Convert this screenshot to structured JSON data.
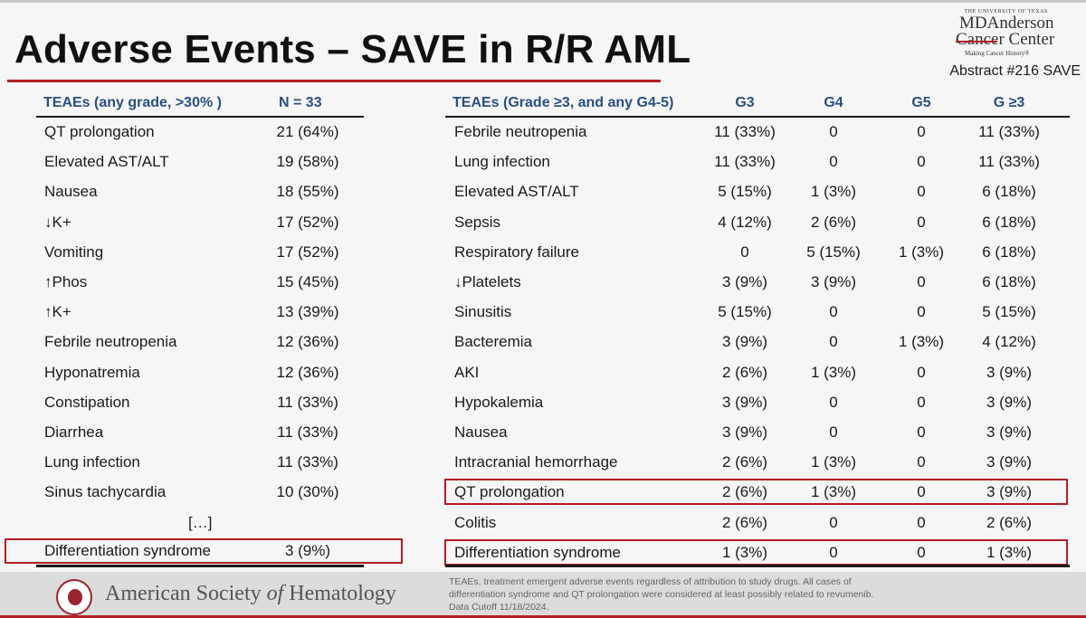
{
  "header": {
    "title": "Adverse Events – SAVE in R/R AML",
    "abstract": "Abstract #216 SAVE",
    "logo": {
      "university": "THE UNIVERSITY OF TEXAS",
      "line1": "MDAnderson",
      "line2": "Cancer Center",
      "tagline": "Making Cancer History®"
    }
  },
  "left_table": {
    "col_headers": [
      "TEAEs (any grade, >30% )",
      "N = 33"
    ],
    "rows": [
      [
        "QT prolongation",
        "21 (64%)"
      ],
      [
        "Elevated AST/ALT",
        "19 (58%)"
      ],
      [
        "Nausea",
        "18 (55%)"
      ],
      [
        "↓K+",
        "17 (52%)"
      ],
      [
        "Vomiting",
        "17 (52%)"
      ],
      [
        "↑Phos",
        "15 (45%)"
      ],
      [
        "↑K+",
        "13 (39%)"
      ],
      [
        "Febrile neutropenia",
        "12 (36%)"
      ],
      [
        "Hyponatremia",
        "12 (36%)"
      ],
      [
        "Constipation",
        "11 (33%)"
      ],
      [
        "Diarrhea",
        "11 (33%)"
      ],
      [
        "Lung infection",
        "11 (33%)"
      ],
      [
        "Sinus tachycardia",
        "10 (30%)"
      ]
    ],
    "ellipsis": "[…]",
    "highlight_row": [
      "Differentiation syndrome",
      "3 (9%)"
    ]
  },
  "right_table": {
    "col_headers": [
      "TEAEs (Grade ≥3, and any G4-5)",
      "G3",
      "G4",
      "G5",
      "G ≥3"
    ],
    "rows": [
      [
        "Febrile neutropenia",
        "11 (33%)",
        "0",
        "0",
        "11 (33%)"
      ],
      [
        "Lung infection",
        "11 (33%)",
        "0",
        "0",
        "11 (33%)"
      ],
      [
        "Elevated AST/ALT",
        "5 (15%)",
        "1 (3%)",
        "0",
        "6 (18%)"
      ],
      [
        "Sepsis",
        "4 (12%)",
        "2 (6%)",
        "0",
        "6 (18%)"
      ],
      [
        "Respiratory failure",
        "0",
        "5 (15%)",
        "1 (3%)",
        "6 (18%)"
      ],
      [
        "↓Platelets",
        "3 (9%)",
        "3 (9%)",
        "0",
        "6 (18%)"
      ],
      [
        "Sinusitis",
        "5 (15%)",
        "0",
        "0",
        "5 (15%)"
      ],
      [
        "Bacteremia",
        "3 (9%)",
        "0",
        "1 (3%)",
        "4 (12%)"
      ],
      [
        "AKI",
        "2 (6%)",
        "1 (3%)",
        "0",
        "3 (9%)"
      ],
      [
        "Hypokalemia",
        "3 (9%)",
        "0",
        "0",
        "3 (9%)"
      ],
      [
        "Nausea",
        "3 (9%)",
        "0",
        "0",
        "3 (9%)"
      ],
      [
        "Intracranial hemorrhage",
        "2 (6%)",
        "1 (3%)",
        "0",
        "3 (9%)"
      ],
      [
        "QT prolongation",
        "2 (6%)",
        "1 (3%)",
        "0",
        "3 (9%)"
      ],
      [
        "Colitis",
        "2 (6%)",
        "0",
        "0",
        "2 (6%)"
      ],
      [
        "Differentiation syndrome",
        "1 (3%)",
        "0",
        "0",
        "1 (3%)"
      ]
    ],
    "highlighted_rows": [
      12,
      14
    ]
  },
  "footer": {
    "society_prefix": "American Society ",
    "society_of": "of",
    "society_suffix": " Hematology",
    "note": "TEAEs, treatment emergent adverse events regardless of attribution to study drugs. All cases of differentiation syndrome and QT prolongation were considered at least possibly related to revumenib. Data Cutoff 11/18/2024."
  },
  "colors": {
    "accent_red": "#b21e23",
    "header_blue": "#2a4f82"
  }
}
